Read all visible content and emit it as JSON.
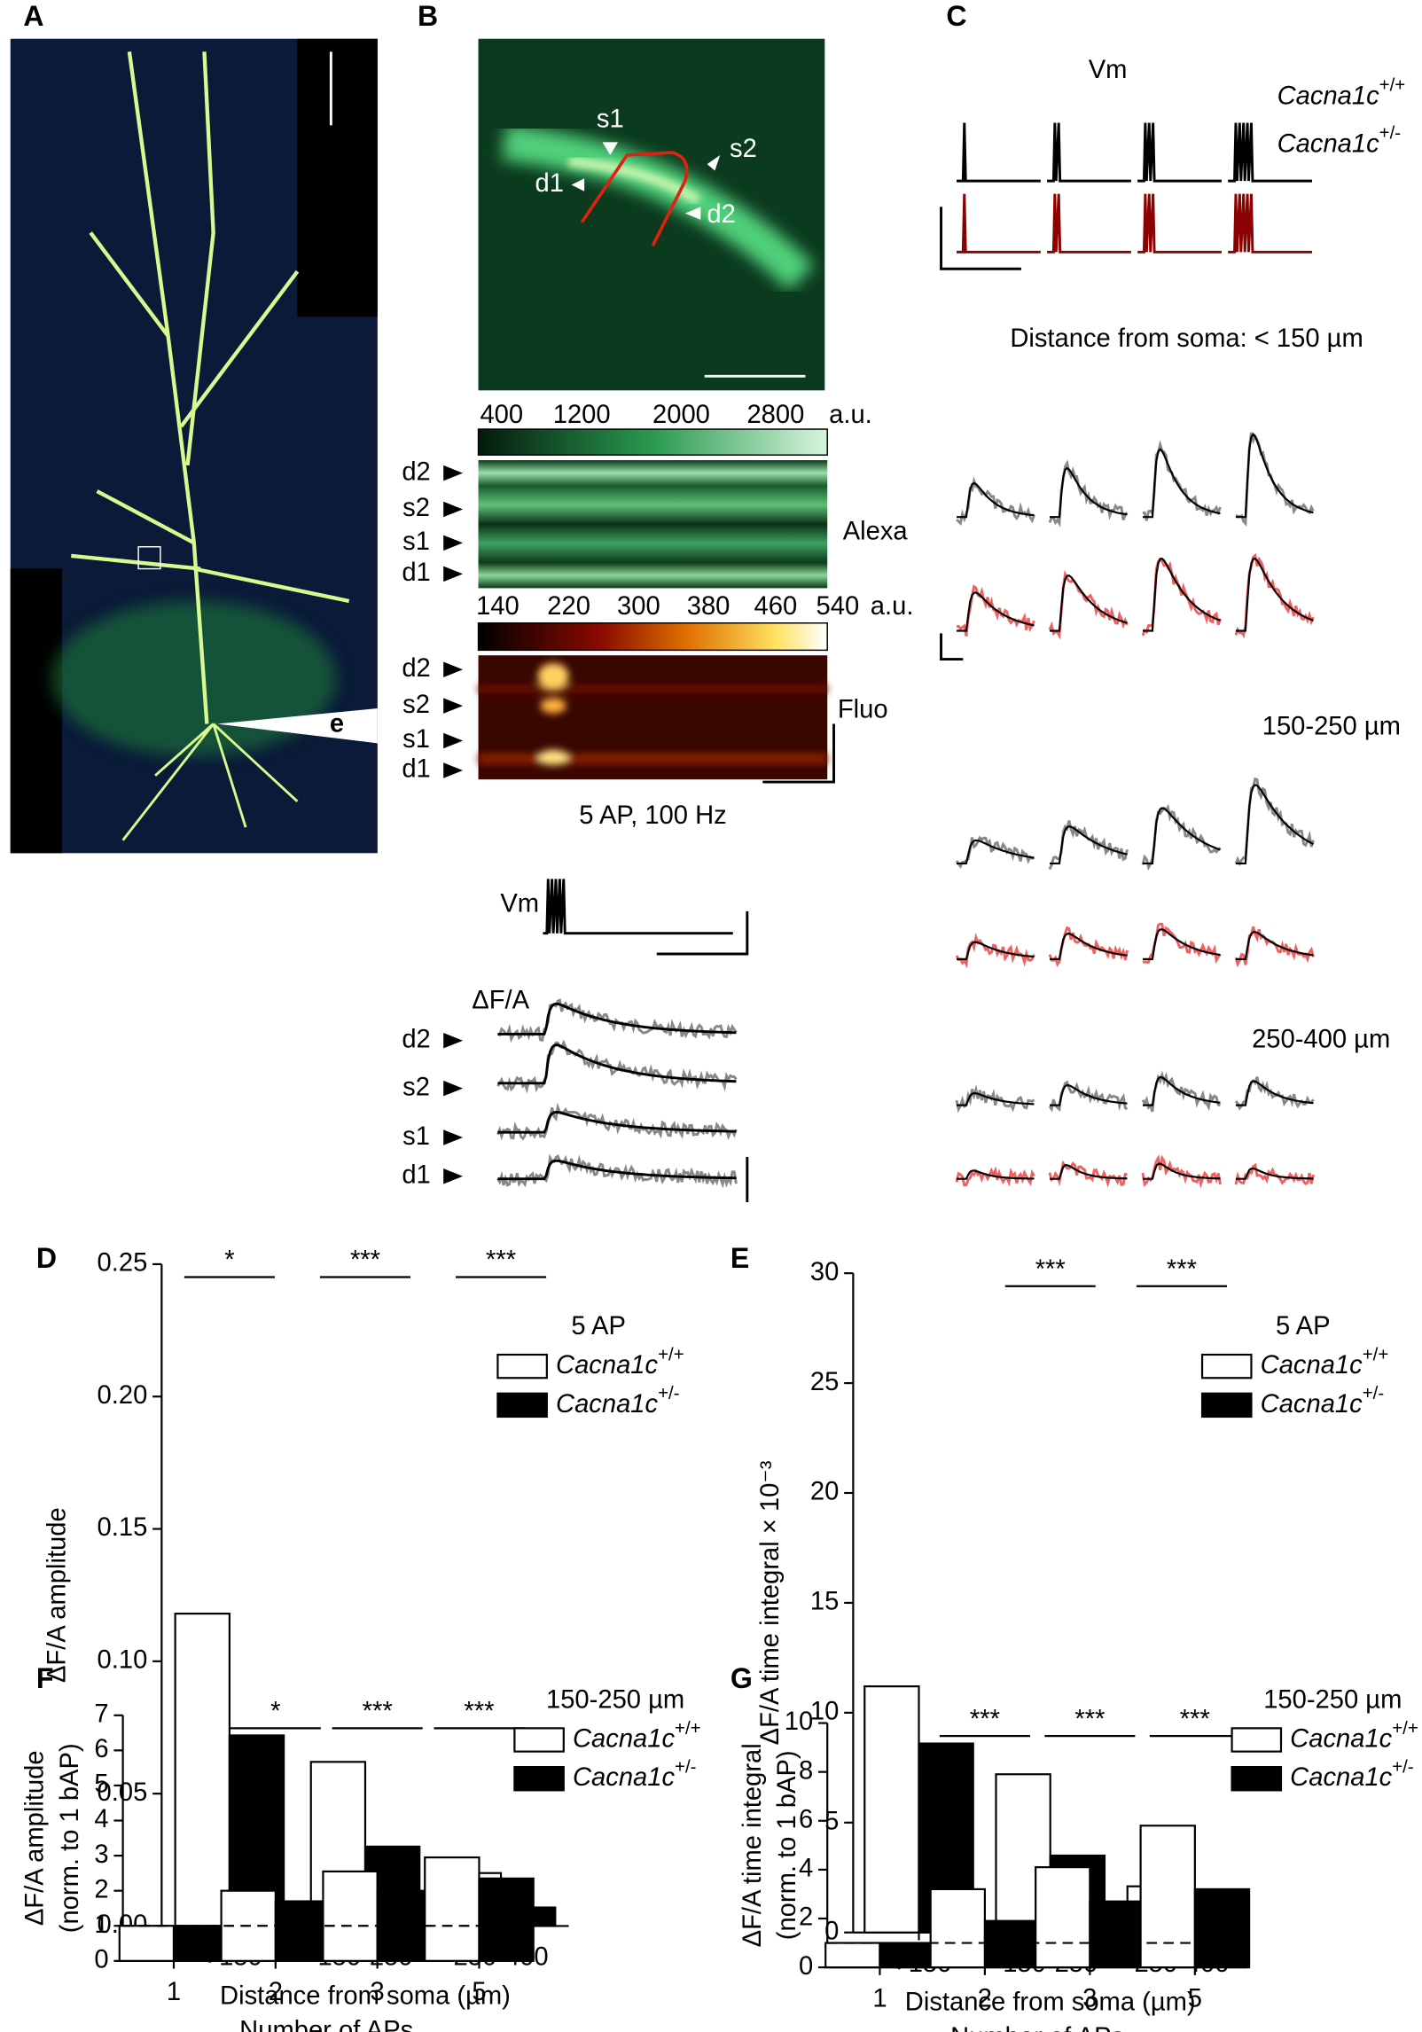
{
  "panel_a": {
    "label": "A",
    "electrode": "e"
  },
  "panel_b": {
    "label": "B",
    "rois": [
      "s1",
      "s2",
      "d1",
      "d2"
    ],
    "alexa_scale": {
      "ticks": [
        "400",
        "1200",
        "2000",
        "2800"
      ],
      "unit": "a.u."
    },
    "alexa_rows": [
      "d2",
      "s2",
      "s1",
      "d1"
    ],
    "alexa_label": "Alexa",
    "fluo_scale": {
      "ticks": [
        "140",
        "220",
        "300",
        "380",
        "460",
        "540"
      ],
      "unit": "a.u."
    },
    "fluo_rows": [
      "d2",
      "s2",
      "s1",
      "d1"
    ],
    "fluo_label": "Fluo",
    "stimulus": "5 AP, 100 Hz",
    "vm_label": "Vm",
    "df_label": "ΔF/A",
    "trace_rows": [
      "d2",
      "s2",
      "s1",
      "d1"
    ]
  },
  "panel_c": {
    "label": "C",
    "vm_label": "Vm",
    "legend": [
      {
        "name": "Cacna1c+/+",
        "color": "#000000"
      },
      {
        "name": "Cacna1c+/-",
        "color": "#8b0000"
      }
    ],
    "sections": [
      "Distance from soma: < 150 µm",
      "150-250 µm",
      "250-400 µm"
    ]
  },
  "chart_data": [
    {
      "type": "bar",
      "panel": "D",
      "ylabel": [
        "ΔF/A amplitude"
      ],
      "xlabel": "Distance from soma (µm)",
      "categories": [
        "< 150",
        "150-250",
        "250-400"
      ],
      "series": [
        {
          "name": "Cacna1c+/+",
          "color": "#ffffff",
          "values": [
            0.118,
            0.062,
            0.02
          ]
        },
        {
          "name": "Cacna1c+/-",
          "color": "#000000",
          "values": [
            0.072,
            0.03,
            0.007
          ]
        }
      ],
      "significance": [
        "*",
        "***",
        "***"
      ],
      "legend_title": "5 AP",
      "ylim": [
        0,
        0.25
      ],
      "yticks": [
        {
          "value": 0,
          "label": "0.00"
        },
        {
          "value": 0.05,
          "label": "0.05"
        },
        {
          "value": 0.1,
          "label": "0.10"
        },
        {
          "value": 0.15,
          "label": "0.15"
        },
        {
          "value": 0.2,
          "label": "0.20"
        },
        {
          "value": 0.25,
          "label": "0.25"
        }
      ]
    },
    {
      "type": "bar",
      "panel": "E",
      "ylabel": [
        "ΔF/A time integral × 10⁻³"
      ],
      "xlabel": "Distance from soma (µm)",
      "categories": [
        "< 150",
        "150-250",
        "250-400"
      ],
      "series": [
        {
          "name": "Cacna1c+/+",
          "color": "#ffffff",
          "values": [
            11.2,
            7.2,
            2.1
          ]
        },
        {
          "name": "Cacna1c+/-",
          "color": "#000000",
          "values": [
            8.6,
            3.5,
            0.5
          ]
        }
      ],
      "significance": [
        null,
        "***",
        "***"
      ],
      "legend_title": "5 AP",
      "ylim": [
        0,
        30
      ],
      "yticks": [
        0,
        5,
        10,
        15,
        20,
        25,
        30
      ]
    },
    {
      "type": "bar",
      "panel": "F",
      "ylabel": [
        "ΔF/A amplitude",
        "(norm. to 1 bAP)"
      ],
      "xlabel": "Number of APs",
      "categories": [
        "1",
        "2",
        "3",
        "5"
      ],
      "series": [
        {
          "name": "Cacna1c+/+",
          "color": "#ffffff",
          "values": [
            1,
            2.0,
            2.55,
            2.95
          ]
        },
        {
          "name": "Cacna1c+/-",
          "color": "#000000",
          "values": [
            1,
            1.7,
            2.0,
            2.35
          ]
        }
      ],
      "significance": [
        null,
        "*",
        "***",
        "***"
      ],
      "legend_title": "150-250 µm",
      "reference_line": 1,
      "ylim": [
        0,
        7
      ],
      "yticks": [
        0,
        1,
        2,
        3,
        4,
        5,
        6,
        7
      ]
    },
    {
      "type": "bar",
      "panel": "G",
      "ylabel": [
        "ΔF/A time integral",
        "(norm. to 1 bAP)"
      ],
      "xlabel": "Number of APs",
      "categories": [
        "1",
        "2",
        "3",
        "5"
      ],
      "series": [
        {
          "name": "Cacna1c+/+",
          "color": "#ffffff",
          "values": [
            1,
            3.2,
            4.1,
            5.8
          ]
        },
        {
          "name": "Cacna1c+/-",
          "color": "#000000",
          "values": [
            1,
            1.9,
            2.7,
            3.2
          ]
        }
      ],
      "significance": [
        null,
        "***",
        "***",
        "***"
      ],
      "legend_title": "150-250 µm",
      "reference_line": 1,
      "ylim": [
        0,
        10
      ],
      "yticks": [
        0,
        2,
        4,
        6,
        8,
        10
      ]
    }
  ]
}
